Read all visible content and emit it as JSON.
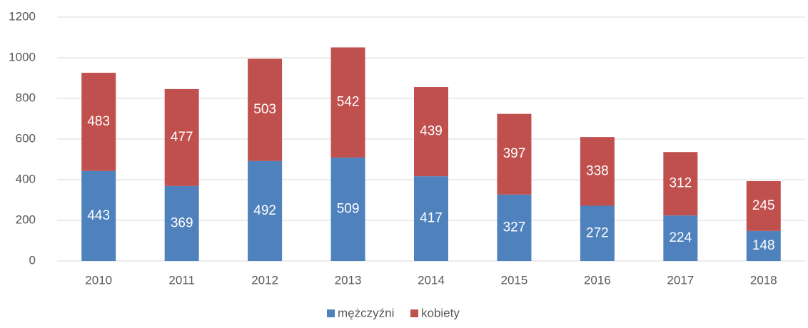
{
  "chart_data": {
    "type": "bar",
    "stacked": true,
    "categories": [
      "2010",
      "2011",
      "2012",
      "2013",
      "2014",
      "2015",
      "2016",
      "2017",
      "2018"
    ],
    "series": [
      {
        "name": "mężczyźni",
        "color": "#4f81bd",
        "values": [
          443,
          369,
          492,
          509,
          417,
          327,
          272,
          224,
          148
        ]
      },
      {
        "name": "kobiety",
        "color": "#c0504d",
        "values": [
          483,
          477,
          503,
          542,
          439,
          397,
          338,
          312,
          245
        ]
      }
    ],
    "ylim": [
      0,
      1200
    ],
    "yticks": [
      0,
      200,
      400,
      600,
      800,
      1000,
      1200
    ],
    "grid": true,
    "legend": "bottom"
  }
}
